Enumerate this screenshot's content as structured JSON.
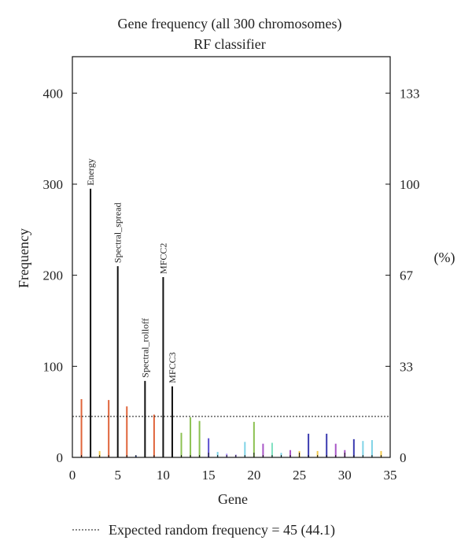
{
  "chart_data": {
    "type": "bar",
    "title": "Gene frequency (all 300 chromosomes)",
    "subtitle": "RF classifier",
    "xlabel": "Gene",
    "ylabel": "Frequency",
    "y2label": "(%)",
    "xlim": [
      0,
      35
    ],
    "ylim": [
      0,
      440
    ],
    "x_ticks": [
      0,
      5,
      10,
      15,
      20,
      25,
      30,
      35
    ],
    "y_ticks": [
      0,
      100,
      200,
      300,
      400
    ],
    "y2_ticks": [
      {
        "value": 0,
        "label": "0"
      },
      {
        "value": 100,
        "label": "33"
      },
      {
        "value": 200,
        "label": "67"
      },
      {
        "value": 300,
        "label": "100"
      },
      {
        "value": 400,
        "label": "133"
      }
    ],
    "reference_line": {
      "value": 45,
      "label": "Expected random frequency = 45 (44.1)"
    },
    "bars": [
      {
        "gene": 1,
        "value": 64,
        "color": "#e0643a"
      },
      {
        "gene": 2,
        "value": 295,
        "color": "#111111",
        "label": "Energy"
      },
      {
        "gene": 3,
        "value": 7,
        "color": "#f2c94c"
      },
      {
        "gene": 4,
        "value": 63,
        "color": "#e0643a"
      },
      {
        "gene": 5,
        "value": 210,
        "color": "#111111",
        "label": "Spectral_spread"
      },
      {
        "gene": 6,
        "value": 56,
        "color": "#e0643a"
      },
      {
        "gene": 7,
        "value": 2,
        "color": "#5a7ce0"
      },
      {
        "gene": 8,
        "value": 84,
        "color": "#111111",
        "label": "Spectral_rolloff"
      },
      {
        "gene": 9,
        "value": 47,
        "color": "#e0643a"
      },
      {
        "gene": 10,
        "value": 198,
        "color": "#111111",
        "label": "MFCC2"
      },
      {
        "gene": 11,
        "value": 78,
        "color": "#111111",
        "label": "MFCC3"
      },
      {
        "gene": 12,
        "value": 27,
        "color": "#8cc152"
      },
      {
        "gene": 13,
        "value": 44,
        "color": "#8cc152"
      },
      {
        "gene": 14,
        "value": 40,
        "color": "#8cc152"
      },
      {
        "gene": 15,
        "value": 21,
        "color": "#5a4fcf"
      },
      {
        "gene": 16,
        "value": 6,
        "color": "#7fd3e6"
      },
      {
        "gene": 17,
        "value": 4,
        "color": "#a78bfa"
      },
      {
        "gene": 18,
        "value": 3,
        "color": "#a78bfa"
      },
      {
        "gene": 19,
        "value": 17,
        "color": "#7fd3e6"
      },
      {
        "gene": 20,
        "value": 39,
        "color": "#8cc152"
      },
      {
        "gene": 21,
        "value": 15,
        "color": "#a855c7"
      },
      {
        "gene": 22,
        "value": 16,
        "color": "#7fe0c0"
      },
      {
        "gene": 23,
        "value": 5,
        "color": "#7fd3e6"
      },
      {
        "gene": 24,
        "value": 8,
        "color": "#a855c7"
      },
      {
        "gene": 25,
        "value": 7,
        "color": "#f2c94c"
      },
      {
        "gene": 26,
        "value": 26,
        "color": "#3b3bb0"
      },
      {
        "gene": 27,
        "value": 7,
        "color": "#f2c94c"
      },
      {
        "gene": 28,
        "value": 26,
        "color": "#3b3bb0"
      },
      {
        "gene": 29,
        "value": 15,
        "color": "#a855c7"
      },
      {
        "gene": 30,
        "value": 8,
        "color": "#a855c7"
      },
      {
        "gene": 31,
        "value": 20,
        "color": "#3b3bb0"
      },
      {
        "gene": 32,
        "value": 18,
        "color": "#7fd3e6"
      },
      {
        "gene": 33,
        "value": 19,
        "color": "#7fd3e6"
      },
      {
        "gene": 34,
        "value": 7,
        "color": "#f2c94c"
      }
    ]
  }
}
